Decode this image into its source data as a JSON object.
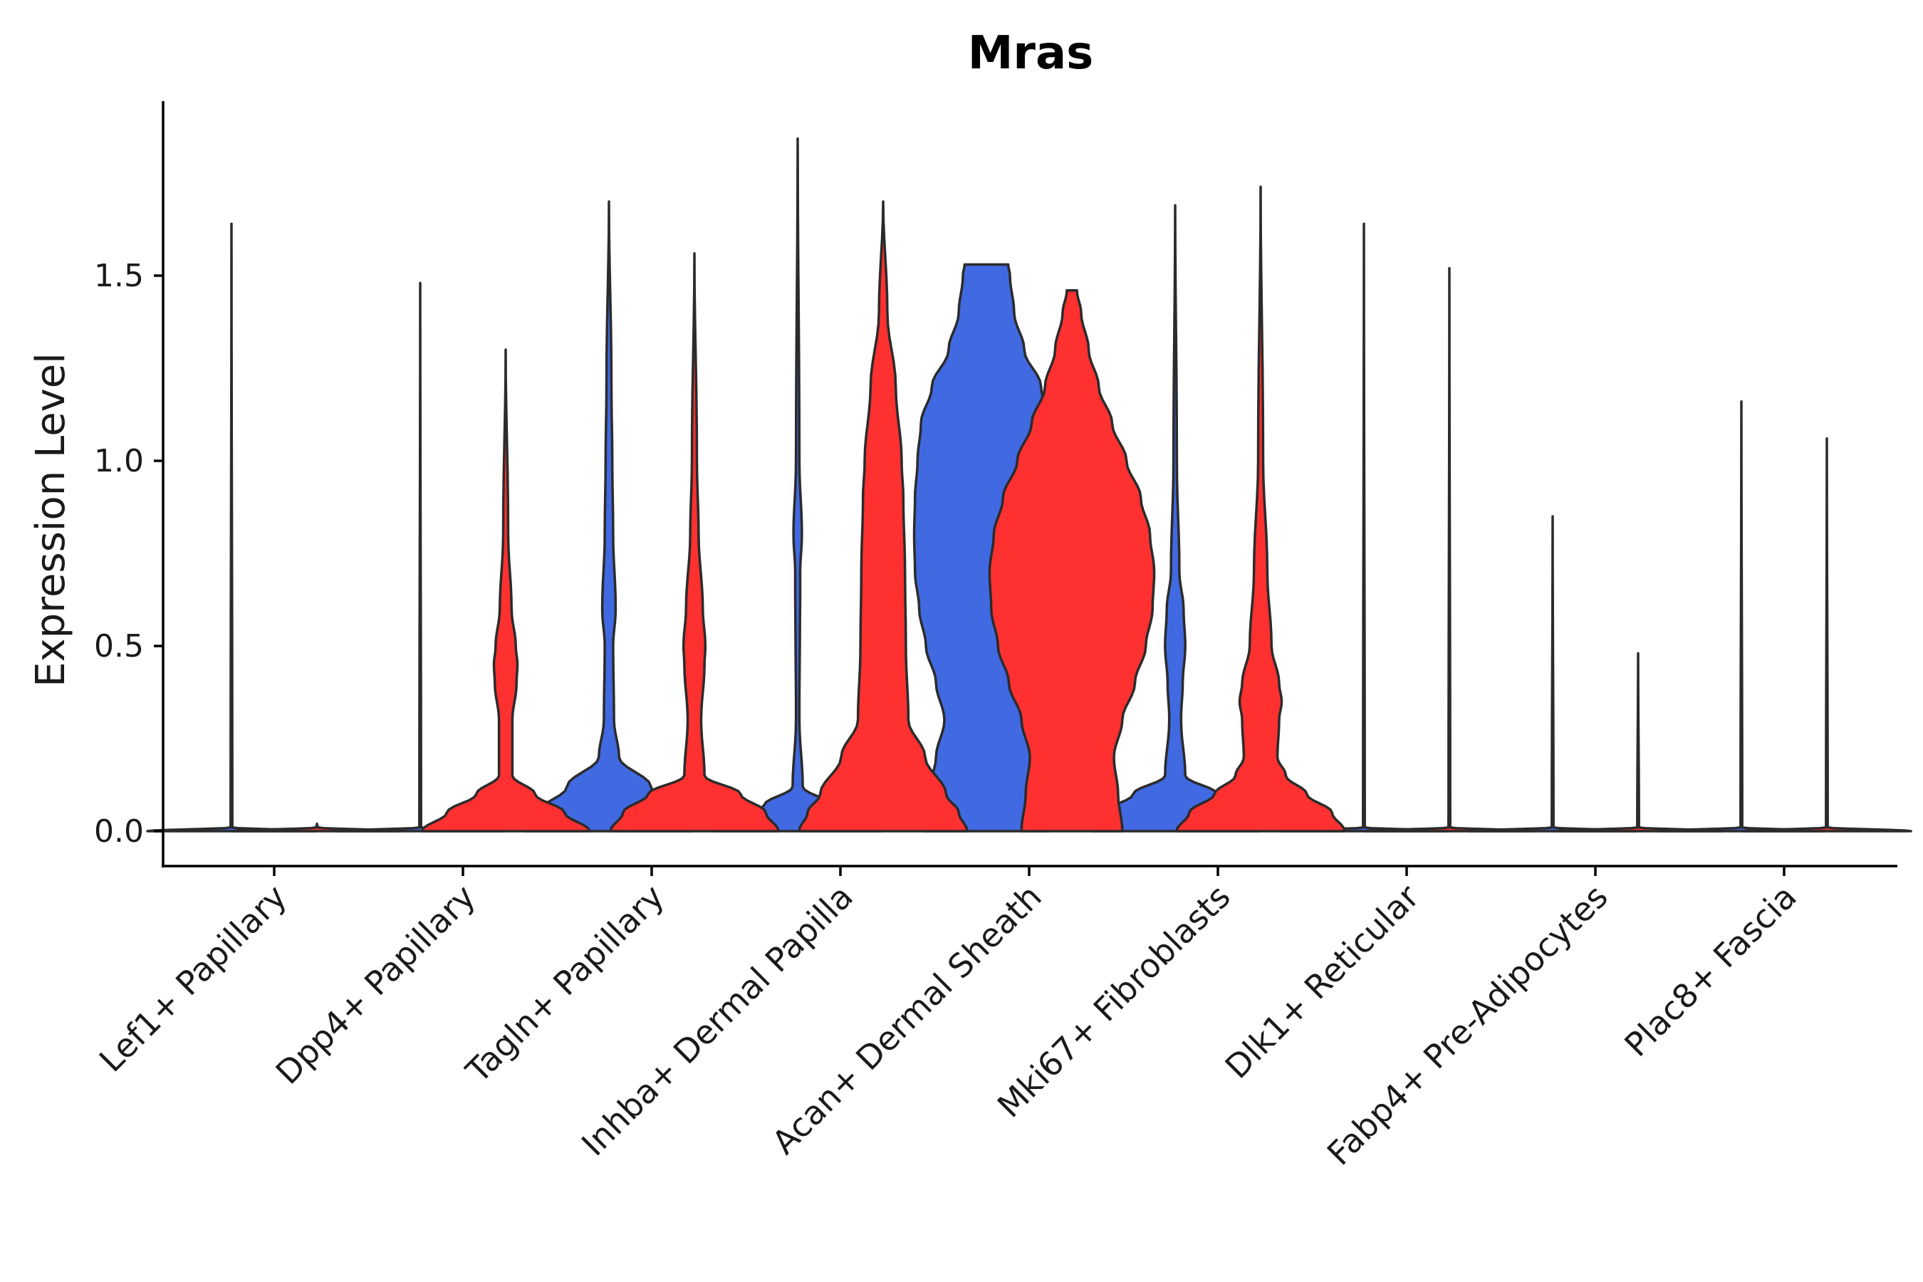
{
  "chart_data": {
    "type": "violin",
    "title": "Mras",
    "xlabel": "",
    "ylabel": "Expression Level",
    "ylim": [
      -0.1,
      1.97
    ],
    "yticks": [
      "0.0",
      "0.5",
      "1.0",
      "1.5"
    ],
    "ytick_values": [
      0.0,
      0.5,
      1.0,
      1.5
    ],
    "categories": [
      "Lef1+ Papillary",
      "Dpp4+ Papillary",
      "Tagln+ Papillary",
      "Inhba+ Dermal Papilla",
      "Acan+ Dermal Sheath",
      "Mki67+ Fibroblasts",
      "Dlk1+ Reticular",
      "Fabp4+ Pre-Adipocytes",
      "Plac8+ Fascia"
    ],
    "colors": {
      "group1": "#4169E1",
      "group2": "#FF3030",
      "outline": "#2b2b2b"
    },
    "series": [
      {
        "name": "group1",
        "color": "#4169E1",
        "max_values": [
          1.64,
          1.48,
          1.7,
          1.87,
          1.53,
          1.69,
          1.64,
          0.85,
          1.16
        ],
        "profiles": [
          [
            [
              0,
              1
            ],
            [
              0.01,
              0.01
            ],
            [
              1.64,
              0
            ]
          ],
          [
            [
              0,
              1
            ],
            [
              0.01,
              0.01
            ],
            [
              1.48,
              0
            ]
          ],
          [
            [
              0,
              1
            ],
            [
              0.05,
              0.85
            ],
            [
              0.12,
              0.5
            ],
            [
              0.2,
              0.12
            ],
            [
              0.3,
              0.06
            ],
            [
              0.5,
              0.05
            ],
            [
              0.6,
              0.08
            ],
            [
              0.8,
              0.05
            ],
            [
              1.0,
              0.04
            ],
            [
              1.2,
              0.03
            ],
            [
              1.7,
              0
            ]
          ],
          [
            [
              0,
              1
            ],
            [
              0.03,
              0.8
            ],
            [
              0.07,
              0.4
            ],
            [
              0.12,
              0.06
            ],
            [
              0.3,
              0.02
            ],
            [
              0.7,
              0.03
            ],
            [
              0.8,
              0.05
            ],
            [
              1.0,
              0.02
            ],
            [
              1.87,
              0
            ]
          ],
          [
            [
              0,
              0.75
            ],
            [
              0.1,
              0.7
            ],
            [
              0.2,
              0.6
            ],
            [
              0.3,
              0.5
            ],
            [
              0.4,
              0.6
            ],
            [
              0.5,
              0.72
            ],
            [
              0.6,
              0.8
            ],
            [
              0.7,
              0.85
            ],
            [
              0.8,
              0.86
            ],
            [
              0.9,
              0.85
            ],
            [
              1.0,
              0.82
            ],
            [
              1.1,
              0.78
            ],
            [
              1.2,
              0.65
            ],
            [
              1.3,
              0.45
            ],
            [
              1.4,
              0.33
            ],
            [
              1.5,
              0.28
            ],
            [
              1.53,
              0.26
            ]
          ],
          [
            [
              0,
              1
            ],
            [
              0.05,
              0.85
            ],
            [
              0.1,
              0.5
            ],
            [
              0.15,
              0.12
            ],
            [
              0.3,
              0.07
            ],
            [
              0.4,
              0.09
            ],
            [
              0.5,
              0.12
            ],
            [
              0.6,
              0.1
            ],
            [
              0.7,
              0.05
            ],
            [
              1.0,
              0.02
            ],
            [
              1.69,
              0
            ]
          ],
          [
            [
              0,
              1
            ],
            [
              0.01,
              0.01
            ],
            [
              1.64,
              0
            ]
          ],
          [
            [
              0,
              1
            ],
            [
              0.01,
              0.01
            ],
            [
              0.85,
              0
            ]
          ],
          [
            [
              0,
              1
            ],
            [
              0.01,
              0.01
            ],
            [
              1.16,
              0
            ]
          ]
        ]
      },
      {
        "name": "group2",
        "color": "#FF3030",
        "max_values": [
          0.02,
          1.3,
          1.56,
          1.7,
          1.46,
          1.74,
          1.52,
          0.48,
          1.06
        ],
        "profiles": [
          [
            [
              0,
              1
            ],
            [
              0.01,
              0.01
            ],
            [
              0.02,
              0
            ]
          ],
          [
            [
              0,
              1
            ],
            [
              0.05,
              0.7
            ],
            [
              0.1,
              0.35
            ],
            [
              0.15,
              0.08
            ],
            [
              0.3,
              0.08
            ],
            [
              0.4,
              0.13
            ],
            [
              0.45,
              0.14
            ],
            [
              0.5,
              0.12
            ],
            [
              0.6,
              0.07
            ],
            [
              0.8,
              0.03
            ],
            [
              1.3,
              0
            ]
          ],
          [
            [
              0,
              1
            ],
            [
              0.05,
              0.85
            ],
            [
              0.1,
              0.55
            ],
            [
              0.15,
              0.12
            ],
            [
              0.3,
              0.08
            ],
            [
              0.45,
              0.12
            ],
            [
              0.5,
              0.13
            ],
            [
              0.6,
              0.1
            ],
            [
              0.8,
              0.05
            ],
            [
              1.0,
              0.03
            ],
            [
              1.56,
              0
            ]
          ],
          [
            [
              0,
              1
            ],
            [
              0.05,
              0.9
            ],
            [
              0.1,
              0.75
            ],
            [
              0.2,
              0.5
            ],
            [
              0.3,
              0.3
            ],
            [
              0.5,
              0.27
            ],
            [
              0.7,
              0.26
            ],
            [
              0.9,
              0.24
            ],
            [
              1.0,
              0.22
            ],
            [
              1.2,
              0.15
            ],
            [
              1.4,
              0.05
            ],
            [
              1.7,
              0
            ]
          ],
          [
            [
              0,
              0.6
            ],
            [
              0.1,
              0.55
            ],
            [
              0.2,
              0.5
            ],
            [
              0.3,
              0.6
            ],
            [
              0.4,
              0.75
            ],
            [
              0.5,
              0.88
            ],
            [
              0.6,
              0.96
            ],
            [
              0.7,
              0.98
            ],
            [
              0.8,
              0.93
            ],
            [
              0.9,
              0.82
            ],
            [
              1.0,
              0.65
            ],
            [
              1.1,
              0.48
            ],
            [
              1.2,
              0.32
            ],
            [
              1.3,
              0.2
            ],
            [
              1.4,
              0.11
            ],
            [
              1.46,
              0.06
            ]
          ],
          [
            [
              0,
              1
            ],
            [
              0.05,
              0.85
            ],
            [
              0.1,
              0.55
            ],
            [
              0.15,
              0.3
            ],
            [
              0.2,
              0.2
            ],
            [
              0.3,
              0.22
            ],
            [
              0.35,
              0.25
            ],
            [
              0.4,
              0.22
            ],
            [
              0.5,
              0.13
            ],
            [
              0.7,
              0.08
            ],
            [
              1.0,
              0.03
            ],
            [
              1.74,
              0
            ]
          ],
          [
            [
              0,
              1
            ],
            [
              0.01,
              0.01
            ],
            [
              1.52,
              0
            ]
          ],
          [
            [
              0,
              1
            ],
            [
              0.01,
              0.01
            ],
            [
              0.48,
              0
            ]
          ],
          [
            [
              0,
              1
            ],
            [
              0.01,
              0.01
            ],
            [
              1.06,
              0
            ]
          ]
        ]
      }
    ]
  }
}
